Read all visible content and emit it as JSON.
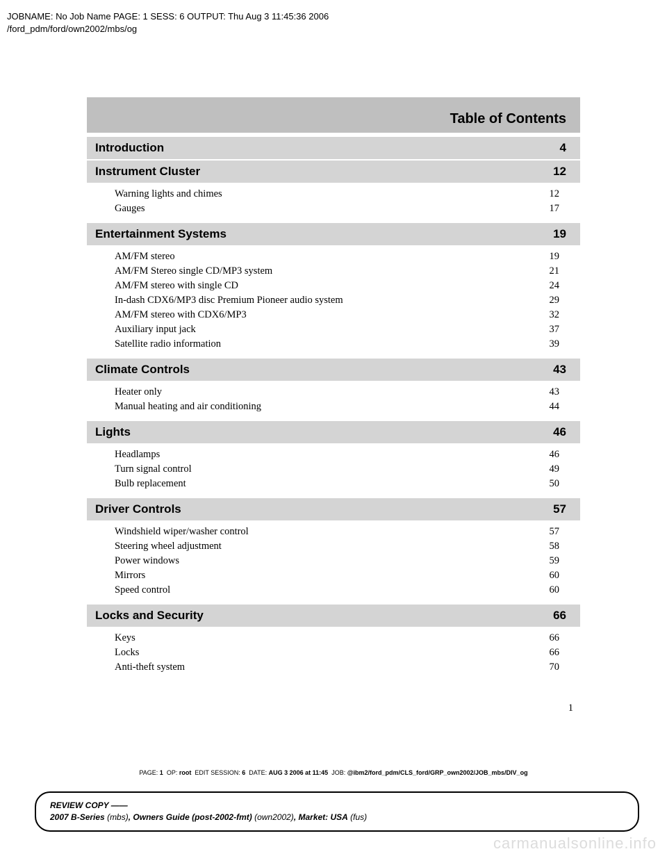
{
  "header_meta": {
    "line1": "JOBNAME: No Job Name  PAGE: 1  SESS: 6  OUTPUT: Thu Aug  3 11:45:36 2006",
    "line2": "/ford_pdm/ford/own2002/mbs/og"
  },
  "title": "Table of Contents",
  "sections": [
    {
      "name": "Introduction",
      "page": "4",
      "items": []
    },
    {
      "name": "Instrument Cluster",
      "page": "12",
      "items": [
        {
          "label": "Warning lights and chimes",
          "page": "12"
        },
        {
          "label": "Gauges",
          "page": "17"
        }
      ]
    },
    {
      "name": "Entertainment Systems",
      "page": "19",
      "items": [
        {
          "label": "AM/FM stereo",
          "page": "19"
        },
        {
          "label": "AM/FM Stereo single CD/MP3 system",
          "page": "21"
        },
        {
          "label": "AM/FM stereo with single CD",
          "page": "24"
        },
        {
          "label": "In-dash CDX6/MP3 disc Premium Pioneer audio system",
          "page": "29"
        },
        {
          "label": "AM/FM stereo with CDX6/MP3",
          "page": "32"
        },
        {
          "label": "Auxiliary input jack",
          "page": "37"
        },
        {
          "label": "Satellite radio information",
          "page": "39"
        }
      ]
    },
    {
      "name": "Climate Controls",
      "page": "43",
      "items": [
        {
          "label": "Heater only",
          "page": "43"
        },
        {
          "label": "Manual heating and air conditioning",
          "page": "44"
        }
      ]
    },
    {
      "name": "Lights",
      "page": "46",
      "items": [
        {
          "label": "Headlamps",
          "page": "46"
        },
        {
          "label": "Turn signal control",
          "page": "49"
        },
        {
          "label": "Bulb replacement",
          "page": "50"
        }
      ]
    },
    {
      "name": "Driver Controls",
      "page": "57",
      "items": [
        {
          "label": "Windshield wiper/washer control",
          "page": "57"
        },
        {
          "label": "Steering wheel adjustment",
          "page": "58"
        },
        {
          "label": "Power windows",
          "page": "59"
        },
        {
          "label": "Mirrors",
          "page": "60"
        },
        {
          "label": "Speed control",
          "page": "60"
        }
      ]
    },
    {
      "name": "Locks and Security",
      "page": "66",
      "items": [
        {
          "label": "Keys",
          "page": "66"
        },
        {
          "label": "Locks",
          "page": "66"
        },
        {
          "label": "Anti-theft system",
          "page": "70"
        }
      ]
    }
  ],
  "page_number": "1",
  "footer_meta": {
    "page_label": "PAGE:",
    "page_val": "1",
    "op_label": "OP:",
    "op_val": "root",
    "edit_label": "EDIT SESSION:",
    "edit_val": "6",
    "date_label": "DATE:",
    "date_val": "AUG  3  2006  at  11:45",
    "job_label": "JOB:",
    "job_val": "@ibm2/ford_pdm/CLS_ford/GRP_own2002/JOB_mbs/DIV_og"
  },
  "footer_box": {
    "line1_prefix": "REVIEW COPY ——",
    "line2_bold1": "2007 B-Series",
    "line2_italic1": " (mbs)",
    "line2_sep1": ", ",
    "line2_bold2": "Owners Guide (post-2002-fmt)",
    "line2_italic2": " (own2002)",
    "line2_sep2": ", Market: ",
    "line2_bold3": "USA",
    "line2_italic3": " (fus)"
  },
  "watermark": "carmanualsonline.info"
}
